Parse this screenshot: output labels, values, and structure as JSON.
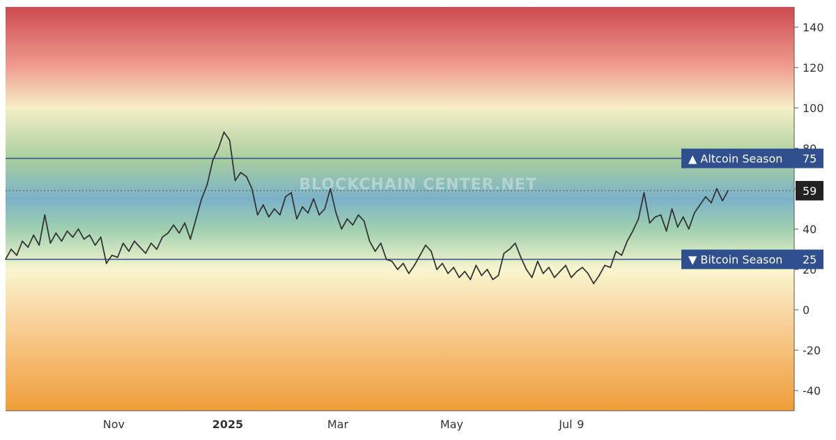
{
  "chart_data": {
    "type": "line",
    "ylim": [
      -50,
      150
    ],
    "y_ticks": [
      "140",
      "120",
      "100",
      "80",
      "60",
      "40",
      "20",
      "0",
      "-20",
      "-40"
    ],
    "x_ticks": [
      {
        "label": "Nov",
        "date": "2024-11-01",
        "bold": false
      },
      {
        "label": "2025",
        "date": "2025-01-01",
        "bold": true
      },
      {
        "label": "Mar",
        "date": "2025-03-01",
        "bold": false
      },
      {
        "label": "May",
        "date": "2025-05-01",
        "bold": false
      },
      {
        "label": "Jul",
        "date": "2025-07-01",
        "bold": false
      },
      {
        "label": "9",
        "date": "2025-07-09",
        "bold": false
      }
    ],
    "watermark": "BLOCKCHAIN CENTER.NET",
    "reference_lines": [
      {
        "label": "▲ Altcoin Season",
        "value": 75,
        "value_label": "75",
        "color": "#2f4f8f"
      },
      {
        "label": "▼ Bitcoin Season",
        "value": 25,
        "value_label": "25",
        "color": "#2f4f8f"
      }
    ],
    "current": {
      "value": 59,
      "label": "59"
    },
    "background_bands": [
      {
        "value": 150,
        "color": "#cc4a4f"
      },
      {
        "value": 120,
        "color": "#f09e8f"
      },
      {
        "value": 100,
        "color": "#f6efc6"
      },
      {
        "value": 75,
        "color": "#a8cf9e"
      },
      {
        "value": 55,
        "color": "#7bb2c9"
      },
      {
        "value": 40,
        "color": "#9fd0b0"
      },
      {
        "value": 20,
        "color": "#f9f6ce"
      },
      {
        "value": 0,
        "color": "#f9d9a6"
      },
      {
        "value": -50,
        "color": "#ef9c38"
      }
    ],
    "series": [
      {
        "color": "#333333",
        "points": [
          [
            "2024-09-04",
            25
          ],
          [
            "2024-09-07",
            30
          ],
          [
            "2024-09-10",
            27
          ],
          [
            "2024-09-13",
            34
          ],
          [
            "2024-09-16",
            31
          ],
          [
            "2024-09-19",
            37
          ],
          [
            "2024-09-22",
            32
          ],
          [
            "2024-09-25",
            47
          ],
          [
            "2024-09-28",
            33
          ],
          [
            "2024-10-01",
            38
          ],
          [
            "2024-10-04",
            34
          ],
          [
            "2024-10-07",
            39
          ],
          [
            "2024-10-10",
            36
          ],
          [
            "2024-10-13",
            40
          ],
          [
            "2024-10-16",
            35
          ],
          [
            "2024-10-19",
            37
          ],
          [
            "2024-10-22",
            32
          ],
          [
            "2024-10-25",
            36
          ],
          [
            "2024-10-28",
            23
          ],
          [
            "2024-10-31",
            27
          ],
          [
            "2024-11-03",
            26
          ],
          [
            "2024-11-06",
            33
          ],
          [
            "2024-11-09",
            29
          ],
          [
            "2024-11-12",
            34
          ],
          [
            "2024-11-15",
            31
          ],
          [
            "2024-11-18",
            28
          ],
          [
            "2024-11-21",
            33
          ],
          [
            "2024-11-24",
            30
          ],
          [
            "2024-11-27",
            36
          ],
          [
            "2024-11-30",
            38
          ],
          [
            "2024-12-03",
            42
          ],
          [
            "2024-12-06",
            38
          ],
          [
            "2024-12-09",
            43
          ],
          [
            "2024-12-12",
            35
          ],
          [
            "2024-12-15",
            45
          ],
          [
            "2024-12-18",
            55
          ],
          [
            "2024-12-21",
            62
          ],
          [
            "2024-12-24",
            74
          ],
          [
            "2024-12-27",
            80
          ],
          [
            "2024-12-30",
            88
          ],
          [
            "2025-01-02",
            84
          ],
          [
            "2025-01-05",
            64
          ],
          [
            "2025-01-08",
            68
          ],
          [
            "2025-01-11",
            66
          ],
          [
            "2025-01-14",
            60
          ],
          [
            "2025-01-17",
            47
          ],
          [
            "2025-01-20",
            52
          ],
          [
            "2025-01-23",
            46
          ],
          [
            "2025-01-26",
            50
          ],
          [
            "2025-01-29",
            47
          ],
          [
            "2025-02-01",
            56
          ],
          [
            "2025-02-04",
            58
          ],
          [
            "2025-02-07",
            45
          ],
          [
            "2025-02-10",
            51
          ],
          [
            "2025-02-13",
            48
          ],
          [
            "2025-02-16",
            55
          ],
          [
            "2025-02-19",
            47
          ],
          [
            "2025-02-22",
            50
          ],
          [
            "2025-02-25",
            60
          ],
          [
            "2025-02-28",
            48
          ],
          [
            "2025-03-03",
            40
          ],
          [
            "2025-03-06",
            45
          ],
          [
            "2025-03-09",
            42
          ],
          [
            "2025-03-12",
            47
          ],
          [
            "2025-03-15",
            44
          ],
          [
            "2025-03-18",
            34
          ],
          [
            "2025-03-21",
            29
          ],
          [
            "2025-03-24",
            33
          ],
          [
            "2025-03-27",
            25
          ],
          [
            "2025-03-30",
            24
          ],
          [
            "2025-04-02",
            20
          ],
          [
            "2025-04-05",
            23
          ],
          [
            "2025-04-08",
            18
          ],
          [
            "2025-04-11",
            22
          ],
          [
            "2025-04-14",
            27
          ],
          [
            "2025-04-17",
            32
          ],
          [
            "2025-04-20",
            29
          ],
          [
            "2025-04-23",
            20
          ],
          [
            "2025-04-26",
            23
          ],
          [
            "2025-04-29",
            18
          ],
          [
            "2025-05-02",
            21
          ],
          [
            "2025-05-05",
            16
          ],
          [
            "2025-05-08",
            19
          ],
          [
            "2025-05-11",
            15
          ],
          [
            "2025-05-14",
            22
          ],
          [
            "2025-05-17",
            17
          ],
          [
            "2025-05-20",
            20
          ],
          [
            "2025-05-23",
            15
          ],
          [
            "2025-05-26",
            17
          ],
          [
            "2025-05-29",
            28
          ],
          [
            "2025-06-01",
            30
          ],
          [
            "2025-06-04",
            33
          ],
          [
            "2025-06-07",
            26
          ],
          [
            "2025-06-10",
            20
          ],
          [
            "2025-06-13",
            16
          ],
          [
            "2025-06-16",
            24
          ],
          [
            "2025-06-19",
            18
          ],
          [
            "2025-06-22",
            21
          ],
          [
            "2025-06-25",
            16
          ],
          [
            "2025-06-28",
            19
          ],
          [
            "2025-07-01",
            22
          ],
          [
            "2025-07-04",
            16
          ],
          [
            "2025-07-07",
            19
          ],
          [
            "2025-07-10",
            21
          ],
          [
            "2025-07-13",
            18
          ],
          [
            "2025-07-16",
            13
          ],
          [
            "2025-07-19",
            17
          ],
          [
            "2025-07-22",
            22
          ],
          [
            "2025-07-25",
            21
          ],
          [
            "2025-07-28",
            29
          ],
          [
            "2025-07-31",
            27
          ],
          [
            "2025-08-03",
            34
          ],
          [
            "2025-08-06",
            39
          ],
          [
            "2025-08-09",
            45
          ],
          [
            "2025-08-12",
            58
          ],
          [
            "2025-08-15",
            43
          ],
          [
            "2025-08-18",
            46
          ],
          [
            "2025-08-21",
            47
          ],
          [
            "2025-08-24",
            39
          ],
          [
            "2025-08-27",
            50
          ],
          [
            "2025-08-30",
            41
          ],
          [
            "2025-09-02",
            46
          ],
          [
            "2025-09-05",
            40
          ],
          [
            "2025-09-08",
            48
          ],
          [
            "2025-09-11",
            52
          ],
          [
            "2025-09-14",
            56
          ],
          [
            "2025-09-17",
            53
          ],
          [
            "2025-09-20",
            60
          ],
          [
            "2025-09-23",
            54
          ],
          [
            "2025-09-26",
            59
          ]
        ]
      }
    ]
  }
}
